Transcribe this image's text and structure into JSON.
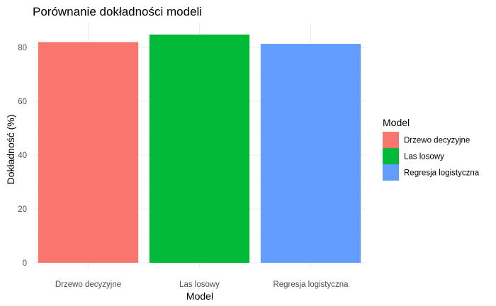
{
  "chart_data": {
    "type": "bar",
    "title": "Porównanie dokładności modeli",
    "xlabel": "Model",
    "ylabel": "Dokładność (%)",
    "categories": [
      "Drzewo decyzyjne",
      "Las losowy",
      "Regresja logistyczna"
    ],
    "values": [
      82,
      84.8,
      81.3
    ],
    "colors": [
      "#F8766D",
      "#00BA38",
      "#619CFF"
    ],
    "ylim": [
      0,
      88
    ],
    "yticks": [
      0,
      20,
      40,
      60,
      80
    ],
    "grid": true,
    "legend": {
      "title": "Model",
      "placement": "right",
      "entries": [
        "Drzewo decyzyjne",
        "Las losowy",
        "Regresja logistyczna"
      ]
    }
  }
}
